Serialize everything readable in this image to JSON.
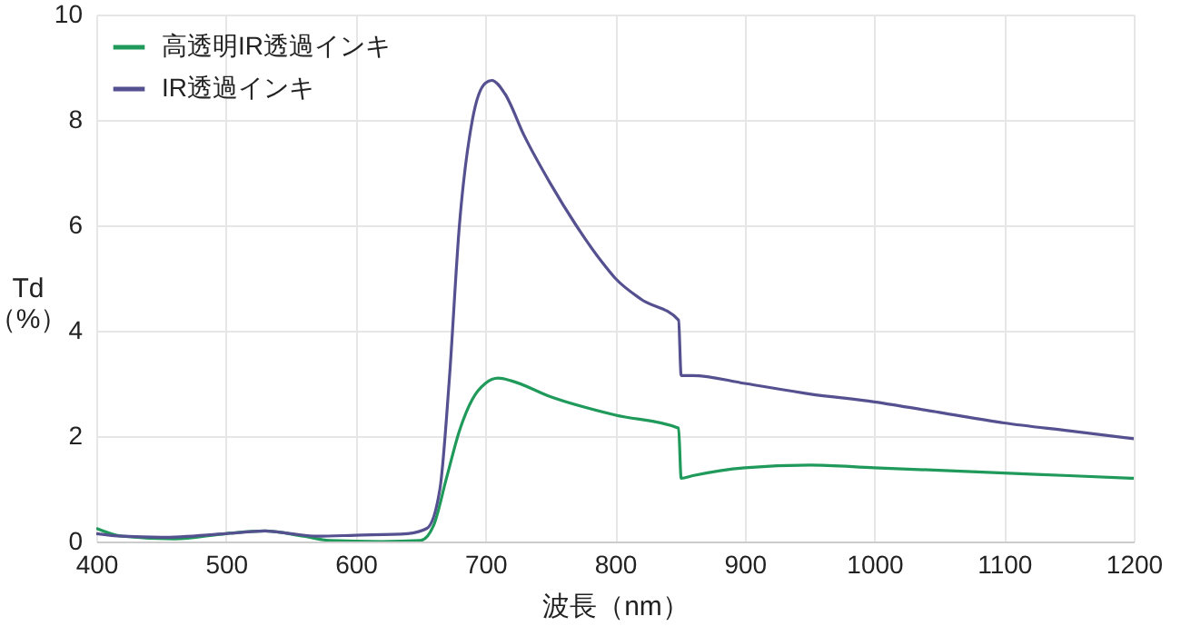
{
  "chart_data": {
    "type": "line",
    "xlabel": "波長（nm）",
    "ylabel": "Td\n（%）",
    "xlim": [
      400,
      1200
    ],
    "xticks": [
      400,
      500,
      600,
      700,
      800,
      900,
      1000,
      1100,
      1200
    ],
    "ylim": [
      0,
      10
    ],
    "yticks": [
      0,
      2,
      4,
      6,
      8,
      10
    ],
    "grid": true,
    "legend": "top left",
    "marker": "none",
    "line_style": "solid",
    "series": [
      {
        "name": "高透明IR透過インキ",
        "color": "#1f9a5a",
        "x": [
          400,
          420,
          460,
          500,
          530,
          560,
          580,
          620,
          650,
          660,
          670,
          680,
          690,
          700,
          710,
          720,
          750,
          800,
          849,
          851,
          860,
          900,
          950,
          1000,
          1100,
          1150,
          1200
        ],
        "values": [
          0.25,
          0.1,
          0.05,
          0.15,
          0.2,
          0.1,
          0.02,
          0.0,
          0.02,
          0.3,
          1.2,
          2.1,
          2.7,
          3.0,
          3.1,
          3.05,
          2.75,
          2.4,
          2.15,
          1.2,
          1.25,
          1.4,
          1.45,
          1.4,
          1.3,
          1.25,
          1.2
        ]
      },
      {
        "name": "IR透過インキ",
        "color": "#55508f",
        "x": [
          400,
          420,
          450,
          500,
          530,
          550,
          570,
          600,
          640,
          655,
          665,
          672,
          680,
          690,
          700,
          705,
          715,
          730,
          750,
          770,
          790,
          800,
          820,
          849,
          851,
          860,
          900,
          950,
          1000,
          1050,
          1100,
          1150,
          1200
        ],
        "values": [
          0.15,
          0.1,
          0.08,
          0.15,
          0.2,
          0.15,
          0.1,
          0.12,
          0.15,
          0.25,
          1.0,
          3.0,
          6.0,
          8.0,
          8.7,
          8.75,
          8.5,
          7.7,
          6.8,
          6.0,
          5.3,
          5.0,
          4.6,
          4.2,
          3.15,
          3.15,
          3.0,
          2.8,
          2.65,
          2.45,
          2.25,
          2.1,
          1.95
        ]
      }
    ]
  }
}
